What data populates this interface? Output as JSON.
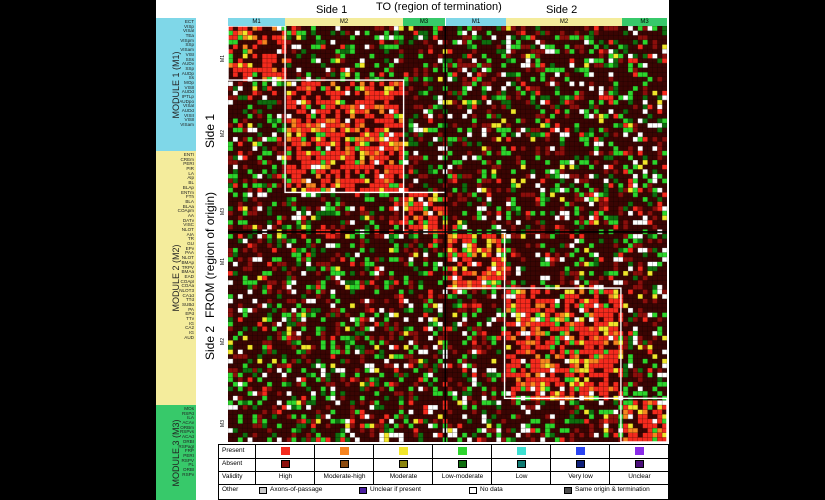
{
  "top": {
    "title": "TO (region of termination)",
    "side1": "Side 1",
    "side2": "Side 2",
    "modules": [
      "M1",
      "M2",
      "M3",
      "M1",
      "M2",
      "M3"
    ]
  },
  "left": {
    "from_label": "FROM (region of origin)",
    "side1": "Side 1",
    "side2": "Side 2",
    "module1": "MODULE 1 (M1)",
    "module2": "MODULE 2 (M2)",
    "module3": "MODULE 3 (M3)",
    "row_modules": [
      "M1",
      "M2",
      "M3",
      "M1",
      "M2",
      "M3"
    ],
    "regions_m1": [
      "ECT",
      "VISp",
      "VISal",
      "TEa",
      "VISpm",
      "SSp",
      "VISam",
      "VISl",
      "SSs",
      "AUDv",
      "SSp",
      "AUDp",
      "Ss",
      "MOp",
      "VISll",
      "AUDd",
      "IPTLp",
      "AUDpo",
      "VISal",
      "AUDd",
      "VISII",
      "VISll",
      "VISam"
    ],
    "regions_m2": [
      "ENTl",
      "CREm",
      "PERI",
      "PIR",
      "LA",
      "Alp",
      "BL",
      "BLAp",
      "ENTm",
      "FTh",
      "BLA",
      "BLAa",
      "COApm",
      "AA",
      "DATv",
      "VISC",
      "NLOT",
      "AIA",
      "TR",
      "GU",
      "EPv",
      "PAA",
      "NLOT",
      "BMAp",
      "TRPV",
      "BMAa",
      "EAD",
      "COApl",
      "COAa",
      "NLOT3",
      "CA1d",
      "TTd",
      "SUBd",
      "PA",
      "EPd",
      "TTv",
      "IG",
      "CA2",
      "IG",
      "AUD"
    ],
    "regions_m3": [
      "MOs",
      "RSPd",
      "ILA",
      "ACAv",
      "ORBm",
      "RSPvs",
      "ACAd",
      "ORBI",
      "RSPagl",
      "FRP",
      "PERI",
      "RSPV",
      "PL",
      "ORBl",
      "RSPv"
    ]
  },
  "legend": {
    "rows": [
      "Present",
      "Absent",
      "Validity",
      "Other"
    ],
    "validity": [
      "High",
      "Moderate-high",
      "Moderate",
      "Low-moderate",
      "Low",
      "Very low",
      "Unclear"
    ],
    "colors": [
      "#f52a1d",
      "#f7841e",
      "#f1e62a",
      "#2dd52c",
      "#3de0d2",
      "#2a44f2",
      "#8a2ce8"
    ],
    "absent_colors": [
      "#8b0e0b",
      "#8b4a0e",
      "#8c850e",
      "#0e6e0e",
      "#0e7a72",
      "#0e1f7a",
      "#4a0e7a"
    ],
    "other": [
      {
        "label": "Axons-of-passage",
        "color": "#c8c8c8"
      },
      {
        "label": "Unclear if present",
        "color": "#4b1fa0"
      },
      {
        "label": "No data",
        "color": "#ffffff"
      },
      {
        "label": "Same origin & termination",
        "color": "#4a4a4a"
      }
    ]
  },
  "colors": {
    "module1": "#7fd7e8",
    "module2": "#f4ec9c",
    "module3": "#37c96a",
    "matrix_bg": "#3a0503"
  }
}
